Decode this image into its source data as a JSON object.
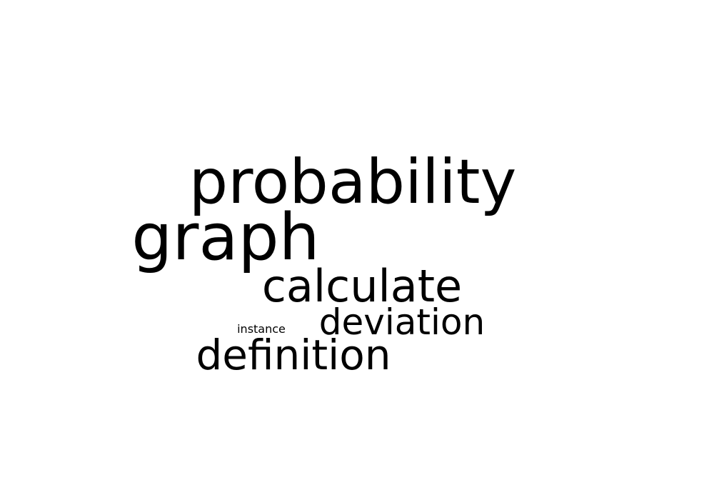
{
  "word_cloud": {
    "words": [
      {
        "text": "probability"
      },
      {
        "text": "graph"
      },
      {
        "text": "calculate"
      },
      {
        "text": "deviation"
      },
      {
        "text": "instance"
      },
      {
        "text": "definition"
      }
    ],
    "text_color": "#000000",
    "background_color": "#ffffff"
  }
}
